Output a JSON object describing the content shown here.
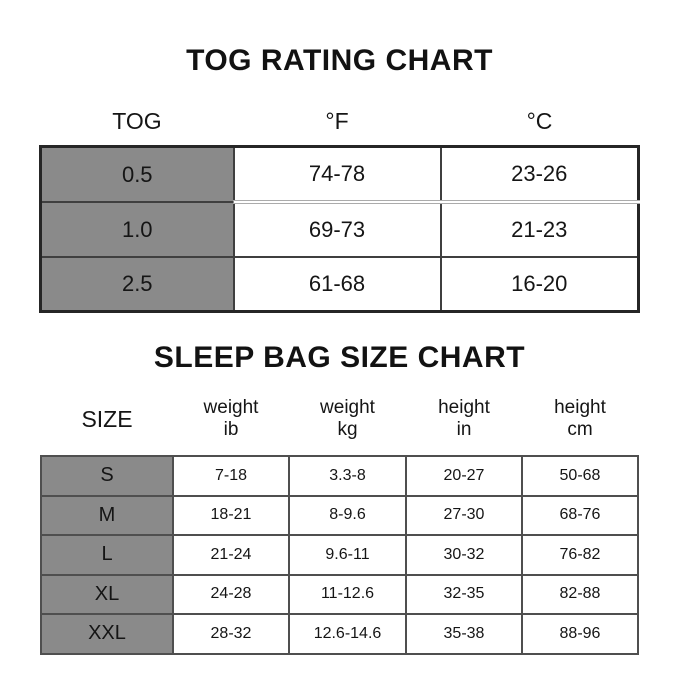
{
  "colors": {
    "background": "#ffffff",
    "gray_cell": "#8a8a8a",
    "border_outer": "#262626",
    "border_inner": "#4f4f4f",
    "text": "#151515"
  },
  "size_chart_header_lines": [
    [
      "SIZE",
      ""
    ],
    [
      "weight",
      "ib"
    ],
    [
      "weight",
      "kg"
    ],
    [
      "height",
      "in"
    ],
    [
      "height",
      "cm"
    ]
  ],
  "chart_data": [
    {
      "type": "table",
      "title": "TOG RATING CHART",
      "columns": [
        "TOG",
        "°F",
        "°C"
      ],
      "rows": [
        [
          "0.5",
          "74-78",
          "23-26"
        ],
        [
          "1.0",
          "69-73",
          "21-23"
        ],
        [
          "2.5",
          "61-68",
          "16-20"
        ]
      ],
      "layout_hints": {
        "first_column_shaded": true,
        "header_outside_borders": true
      }
    },
    {
      "type": "table",
      "title": "SLEEP BAG SIZE CHART",
      "columns": [
        "SIZE",
        "weight ib",
        "weight kg",
        "height in",
        "height cm"
      ],
      "rows": [
        [
          "S",
          "7-18",
          "3.3-8",
          "20-27",
          "50-68"
        ],
        [
          "M",
          "18-21",
          "8-9.6",
          "27-30",
          "68-76"
        ],
        [
          "L",
          "21-24",
          "9.6-11",
          "30-32",
          "76-82"
        ],
        [
          "XL",
          "24-28",
          "11-12.6",
          "32-35",
          "82-88"
        ],
        [
          "XXL",
          "28-32",
          "12.6-14.6",
          "35-38",
          "88-96"
        ]
      ],
      "layout_hints": {
        "first_column_shaded": true,
        "header_outside_borders": true
      }
    }
  ]
}
